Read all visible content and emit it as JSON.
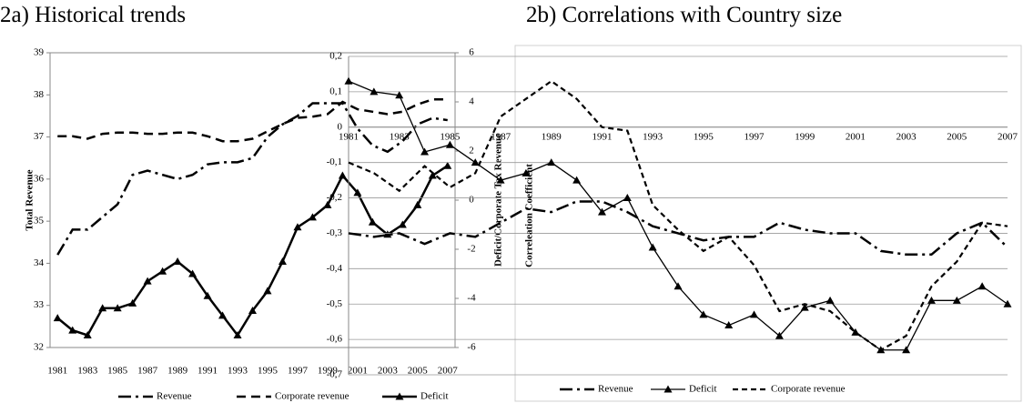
{
  "chart_data": [
    {
      "type": "line",
      "title": "2a) Historical trends",
      "y_label": "Total Revenue",
      "y2_label": "Deficit/Corporate Tax Revenue",
      "categories": [
        "1981",
        null,
        "1983",
        null,
        "1985",
        null,
        "1987",
        null,
        "1989",
        null,
        "1991",
        null,
        "1993",
        null,
        "1995",
        null,
        "1997",
        null,
        "1999",
        null,
        "2001",
        null,
        "2003",
        null,
        "2005",
        null,
        "2007"
      ],
      "ylim": [
        32,
        39
      ],
      "yticks": [
        32,
        33,
        34,
        35,
        36,
        37,
        38,
        39
      ],
      "y2lim": [
        -6,
        6
      ],
      "y2ticks": [
        -6,
        -4,
        -2,
        0,
        2,
        4,
        6
      ],
      "grid": false,
      "series": [
        {
          "name": "Revenue",
          "color": "#000000",
          "dash": "dashdot",
          "values": [
            34.2,
            34.8,
            34.8,
            35.1,
            35.4,
            36.1,
            36.2,
            36.1,
            36.0,
            36.1,
            36.35,
            36.4,
            36.4,
            36.5,
            37.0,
            37.3,
            37.5,
            37.8,
            37.8,
            37.8,
            37.2,
            36.8,
            36.65,
            36.9,
            37.3,
            37.45,
            37.4
          ]
        },
        {
          "name": "Corporate revenue",
          "color": "#000000",
          "dash": "dash",
          "axis": "y2",
          "values": [
            2.6,
            2.6,
            2.5,
            2.7,
            2.75,
            2.75,
            2.7,
            2.7,
            2.75,
            2.75,
            2.6,
            2.4,
            2.4,
            2.5,
            2.8,
            3.1,
            3.35,
            3.4,
            3.5,
            4.0,
            3.7,
            3.6,
            3.5,
            3.6,
            3.9,
            4.1,
            4.1
          ]
        },
        {
          "name": "Deficit",
          "color": "#000000",
          "dash": "solid",
          "marker": "triangle",
          "axis": "y2",
          "values": [
            -4.8,
            -5.3,
            -5.5,
            -4.4,
            -4.4,
            -4.2,
            -3.3,
            -2.9,
            -2.5,
            -3.0,
            -3.9,
            -4.7,
            -5.5,
            -4.5,
            -3.7,
            -2.5,
            -1.1,
            -0.7,
            -0.2,
            1.0,
            0.3,
            -0.9,
            -1.4,
            -1.0,
            -0.2,
            1.0,
            1.4
          ]
        }
      ]
    },
    {
      "type": "line",
      "title": "2b) Correlations with Country size",
      "y_label": "Correleation Coefficient",
      "categories": [
        "1981",
        null,
        "1983",
        null,
        "1985",
        null,
        "1987",
        null,
        "1989",
        null,
        "1991",
        null,
        "1993",
        null,
        "1995",
        null,
        "1997",
        null,
        "1999",
        null,
        "2001",
        null,
        "2003",
        null,
        "2005",
        null,
        "2007"
      ],
      "ylim": [
        -0.7,
        0.2
      ],
      "yticks": [
        {
          "value": -0.7,
          "label": "-0,7"
        },
        {
          "value": -0.6,
          "label": "-0,6"
        },
        {
          "value": -0.5,
          "label": "-0,5"
        },
        {
          "value": -0.4,
          "label": "-0,4"
        },
        {
          "value": -0.3,
          "label": "-0,3"
        },
        {
          "value": -0.2,
          "label": "-0,2"
        },
        {
          "value": -0.1,
          "label": "-0,1"
        },
        0,
        {
          "value": 0.1,
          "label": "0,1"
        },
        {
          "value": 0.2,
          "label": "0,2"
        }
      ],
      "grid": true,
      "series": [
        {
          "name": "Revenue",
          "color": "#000000",
          "dash": "dashdot",
          "values": [
            -0.3,
            -0.31,
            -0.3,
            -0.33,
            -0.3,
            -0.31,
            -0.27,
            -0.23,
            -0.24,
            -0.21,
            -0.21,
            -0.24,
            -0.28,
            -0.3,
            -0.32,
            -0.31,
            -0.31,
            -0.27,
            -0.29,
            -0.3,
            -0.3,
            -0.35,
            -0.36,
            -0.36,
            -0.3,
            -0.27,
            -0.34
          ]
        },
        {
          "name": "Deficit",
          "color": "#000000",
          "dash": "thin",
          "marker": "triangle",
          "values": [
            0.13,
            0.1,
            0.09,
            -0.07,
            -0.05,
            -0.1,
            -0.15,
            -0.13,
            -0.1,
            -0.15,
            -0.24,
            -0.2,
            -0.34,
            -0.45,
            -0.53,
            -0.56,
            -0.53,
            -0.59,
            -0.51,
            -0.49,
            -0.58,
            -0.63,
            -0.63,
            -0.49,
            -0.49,
            -0.45,
            -0.5
          ]
        },
        {
          "name": "Corporate revenue",
          "color": "#000000",
          "dash": "shortdash",
          "values": [
            -0.1,
            -0.13,
            -0.18,
            -0.11,
            -0.17,
            -0.13,
            0.03,
            0.08,
            0.13,
            0.08,
            0.0,
            -0.01,
            -0.22,
            -0.29,
            -0.35,
            -0.31,
            -0.39,
            -0.52,
            -0.5,
            -0.52,
            -0.58,
            -0.63,
            -0.59,
            -0.45,
            -0.38,
            -0.27,
            -0.28
          ]
        }
      ]
    }
  ]
}
